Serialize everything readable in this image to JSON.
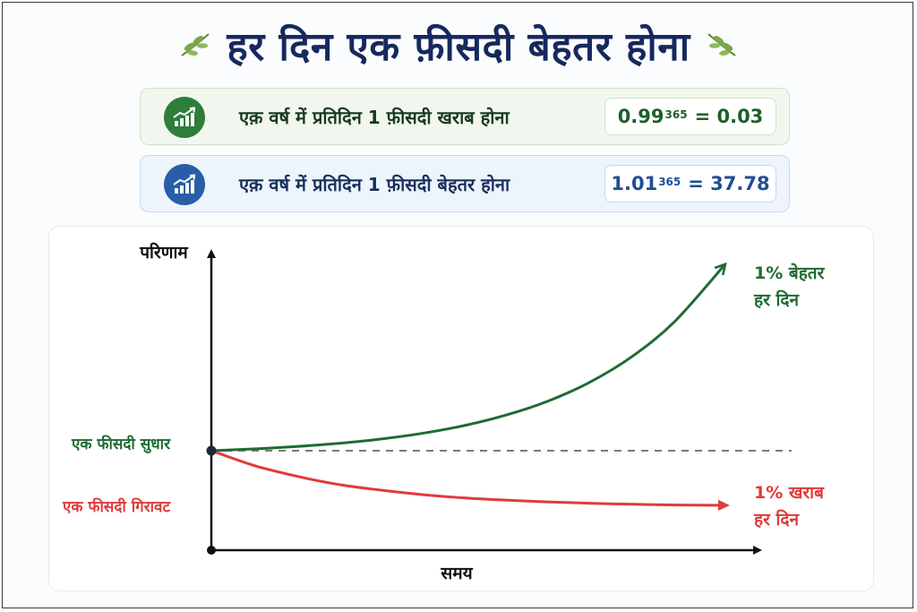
{
  "header": {
    "title": "हर दिन एक फ़ीसदी बेहतर होना",
    "left_icon": "leaf-sprig-icon",
    "right_icon": "leaf-sprig-icon"
  },
  "cards": {
    "worse": {
      "icon": "growth-chart-icon",
      "text": "एक़ वर्ष में प्रतिदिन 1 फ़ीसदी खराब होना",
      "base": "0.99",
      "exponent": "365",
      "result": "= 0.03"
    },
    "better": {
      "icon": "growth-chart-icon",
      "text": "एक़ वर्ष में प्रतिदिन 1 फ़ीसदी बेहतर होना",
      "base": "1.01",
      "exponent": "365",
      "result": "= 37.78"
    }
  },
  "colors": {
    "title": "#16285e",
    "green": "#1e6b34",
    "red": "#e03a3a",
    "blue": "#285ea8",
    "axis": "#111111",
    "baseline": "#7a7a7a"
  },
  "chart_data": {
    "type": "line",
    "title": "",
    "ylabel": "परिणाम",
    "xlabel": "समय",
    "xlim": [
      0,
      365
    ],
    "ylim": [
      0,
      45
    ],
    "baseline": 1,
    "series": [
      {
        "name": "1% बेहतर हर दिन",
        "name_line1": "1% बेहतर",
        "name_line2": "हर दिन",
        "color": "#1e6b34",
        "x": [
          0,
          30,
          60,
          90,
          120,
          150,
          180,
          210,
          240,
          270,
          300,
          330,
          365
        ],
        "values": [
          1,
          1.35,
          1.82,
          2.45,
          3.3,
          4.45,
          6.0,
          8.1,
          10.9,
          14.7,
          19.8,
          26.7,
          37.78
        ]
      },
      {
        "name": "1% खराब हर दिन",
        "name_line1": "1% खराब",
        "name_line2": "हर दिन",
        "color": "#e03a3a",
        "x": [
          0,
          30,
          60,
          90,
          120,
          150,
          180,
          210,
          240,
          270,
          300,
          330,
          365
        ],
        "values": [
          1,
          0.74,
          0.55,
          0.4,
          0.3,
          0.22,
          0.16,
          0.12,
          0.09,
          0.066,
          0.049,
          0.036,
          0.03
        ]
      }
    ],
    "left_labels": {
      "improve": "एक फीसदी सुधार",
      "decline": "एक फीसदी गिरावट"
    }
  }
}
